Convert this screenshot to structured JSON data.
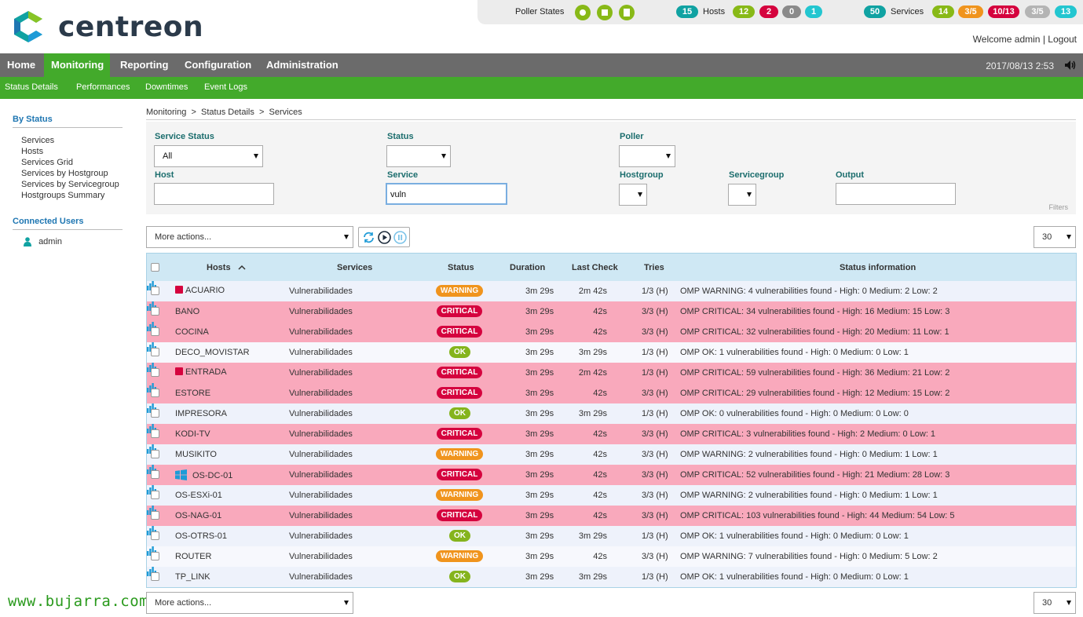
{
  "brand": {
    "name": "centreon"
  },
  "topbar": {
    "poller_label": "Poller States",
    "hosts": {
      "total": "15",
      "label": "Hosts",
      "up": "12",
      "down": "2",
      "unreachable": "0",
      "pending": "1"
    },
    "services": {
      "total": "50",
      "label": "Services",
      "ok": "14",
      "warning": "3/5",
      "critical": "10/13",
      "unknown": "3/5",
      "pending": "13"
    }
  },
  "user": {
    "welcome": "Welcome admin",
    "separator": "|",
    "logout": "Logout"
  },
  "nav": {
    "items": [
      "Home",
      "Monitoring",
      "Reporting",
      "Configuration",
      "Administration"
    ],
    "active": "Monitoring",
    "datetime": "2017/08/13 2:53"
  },
  "subnav": {
    "items": [
      "Status  Details",
      "Performances",
      "Downtimes",
      "Event  Logs"
    ]
  },
  "sidebar": {
    "by_status_title": "By Status",
    "links": [
      "Services",
      "Hosts",
      "Services Grid",
      "Services by Hostgroup",
      "Services by Servicegroup",
      "Hostgroups Summary"
    ],
    "connected_title": "Connected Users",
    "user": "admin"
  },
  "breadcrumb": {
    "text": "Monitoring  >  Status Details  >  Services"
  },
  "filters": {
    "service_status_label": "Service Status",
    "service_status_value": "All",
    "status_label": "Status",
    "poller_label": "Poller",
    "host_label": "Host",
    "service_label": "Service",
    "service_value": "vuln",
    "hostgroup_label": "Hostgroup",
    "servicegroup_label": "Servicegroup",
    "output_label": "Output",
    "note": "Filters"
  },
  "toolbar": {
    "more_actions": "More actions...",
    "per_page": "30"
  },
  "table": {
    "headers": {
      "hosts": "Hosts",
      "services": "Services",
      "status": "Status",
      "duration": "Duration",
      "last_check": "Last Check",
      "tries": "Tries",
      "info": "Status information"
    },
    "rows": [
      {
        "host": "ACUARIO",
        "service": "Vulnerabilidades",
        "status": "WARNING",
        "duration": "3m 29s",
        "last_check": "2m 42s",
        "tries": "1/3 (H)",
        "info": "OMP WARNING: 4 vulnerabilities found - High: 0 Medium: 2 Low: 2"
      },
      {
        "host": "BANO",
        "service": "Vulnerabilidades",
        "status": "CRITICAL",
        "duration": "3m 29s",
        "last_check": "42s",
        "tries": "3/3 (H)",
        "info": "OMP CRITICAL: 34 vulnerabilities found - High: 16 Medium: 15 Low: 3"
      },
      {
        "host": "COCINA",
        "service": "Vulnerabilidades",
        "status": "CRITICAL",
        "duration": "3m 29s",
        "last_check": "42s",
        "tries": "3/3 (H)",
        "info": "OMP CRITICAL: 32 vulnerabilities found - High: 20 Medium: 11 Low: 1"
      },
      {
        "host": "DECO_MOVISTAR",
        "service": "Vulnerabilidades",
        "status": "OK",
        "duration": "3m 29s",
        "last_check": "3m 29s",
        "tries": "1/3 (H)",
        "info": "OMP OK: 1 vulnerabilities found - High: 0 Medium: 0 Low: 1"
      },
      {
        "host": "ENTRADA",
        "service": "Vulnerabilidades",
        "status": "CRITICAL",
        "duration": "3m 29s",
        "last_check": "2m 42s",
        "tries": "1/3 (H)",
        "info": "OMP CRITICAL: 59 vulnerabilities found - High: 36 Medium: 21 Low: 2"
      },
      {
        "host": "ESTORE",
        "service": "Vulnerabilidades",
        "status": "CRITICAL",
        "duration": "3m 29s",
        "last_check": "42s",
        "tries": "3/3 (H)",
        "info": "OMP CRITICAL: 29 vulnerabilities found - High: 12 Medium: 15 Low: 2"
      },
      {
        "host": "IMPRESORA",
        "service": "Vulnerabilidades",
        "status": "OK",
        "duration": "3m 29s",
        "last_check": "3m 29s",
        "tries": "1/3 (H)",
        "info": "OMP OK: 0 vulnerabilities found - High: 0 Medium: 0 Low: 0"
      },
      {
        "host": "KODI-TV",
        "service": "Vulnerabilidades",
        "status": "CRITICAL",
        "duration": "3m 29s",
        "last_check": "42s",
        "tries": "3/3 (H)",
        "info": "OMP CRITICAL: 3 vulnerabilities found - High: 2 Medium: 0 Low: 1"
      },
      {
        "host": "MUSIKITO",
        "service": "Vulnerabilidades",
        "status": "WARNING",
        "duration": "3m 29s",
        "last_check": "42s",
        "tries": "3/3 (H)",
        "info": "OMP WARNING: 2 vulnerabilities found - High: 0 Medium: 1 Low: 1"
      },
      {
        "host": "OS-DC-01",
        "service": "Vulnerabilidades",
        "status": "CRITICAL",
        "duration": "3m 29s",
        "last_check": "42s",
        "tries": "3/3 (H)",
        "info": "OMP CRITICAL: 52 vulnerabilities found - High: 21 Medium: 28 Low: 3"
      },
      {
        "host": "OS-ESXi-01",
        "service": "Vulnerabilidades",
        "status": "WARNING",
        "duration": "3m 29s",
        "last_check": "42s",
        "tries": "3/3 (H)",
        "info": "OMP WARNING: 2 vulnerabilities found - High: 0 Medium: 1 Low: 1"
      },
      {
        "host": "OS-NAG-01",
        "service": "Vulnerabilidades",
        "status": "CRITICAL",
        "duration": "3m 29s",
        "last_check": "42s",
        "tries": "3/3 (H)",
        "info": "OMP CRITICAL: 103 vulnerabilities found - High: 44 Medium: 54 Low: 5"
      },
      {
        "host": "OS-OTRS-01",
        "service": "Vulnerabilidades",
        "status": "OK",
        "duration": "3m 29s",
        "last_check": "3m 29s",
        "tries": "1/3 (H)",
        "info": "OMP OK: 1 vulnerabilities found - High: 0 Medium: 0 Low: 1"
      },
      {
        "host": "ROUTER",
        "service": "Vulnerabilidades",
        "status": "WARNING",
        "duration": "3m 29s",
        "last_check": "42s",
        "tries": "3/3 (H)",
        "info": "OMP WARNING: 7 vulnerabilities found - High: 0 Medium: 5 Low: 2"
      },
      {
        "host": "TP_LINK",
        "service": "Vulnerabilidades",
        "status": "OK",
        "duration": "3m 29s",
        "last_check": "3m 29s",
        "tries": "1/3 (H)",
        "info": "OMP OK: 1 vulnerabilities found - High: 0 Medium: 0 Low: 1"
      }
    ]
  },
  "watermark": "www.bujarra.com",
  "colors": {
    "green": "#43aa2b",
    "critical": "#d5033e",
    "warning": "#f0941d",
    "ok": "#85b41d",
    "teal": "#10a2a2",
    "cyan": "#23c6d0"
  }
}
